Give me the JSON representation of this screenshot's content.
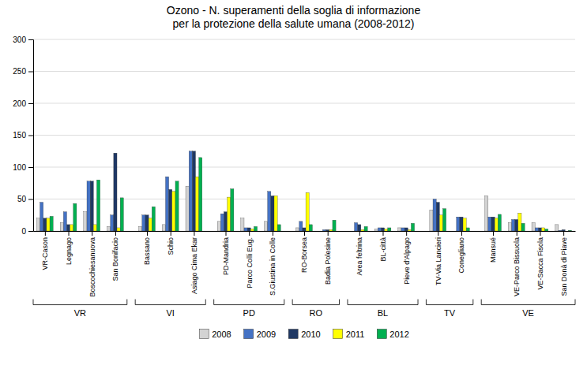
{
  "chart_data": {
    "type": "bar",
    "title": "Ozono - N. superamenti della soglia di informazione\nper la protezione della salute umana (2008-2012)",
    "categories": [
      "VR-Cason",
      "Legnago",
      "Boscochiesanuova",
      "San Bonifacio",
      "Bassano",
      "Schio",
      "Asiago Cima Ekar",
      "PD-Mandria",
      "Parco Colli Eug.",
      "S.Giustina in Colle",
      "RO-Borsea",
      "Badia Polesine",
      "Area feltrina",
      "BL-città",
      "Pieve d'Alpago",
      "TV-Via Lancieri",
      "Conegliano",
      "Mansué",
      "VE-Parco Bissuola",
      "VE-Sacca Fisola",
      "San Donà di Piave"
    ],
    "groups": [
      {
        "label": "VR",
        "categories": [
          "VR-Cason",
          "Legnago",
          "Boscochiesanuova",
          "San Bonifacio"
        ]
      },
      {
        "label": "VI",
        "categories": [
          "Bassano",
          "Schio",
          "Asiago Cima Ekar"
        ]
      },
      {
        "label": "PD",
        "categories": [
          "PD-Mandria",
          "Parco Colli Eug.",
          "S.Giustina in Colle"
        ]
      },
      {
        "label": "RO",
        "categories": [
          "RO-Borsea",
          "Badia Polesine"
        ]
      },
      {
        "label": "BL",
        "categories": [
          "Area feltrina",
          "BL-città",
          "Pieve d'Alpago"
        ]
      },
      {
        "label": "TV",
        "categories": [
          "TV-Via Lancieri",
          "Conegliano"
        ]
      },
      {
        "label": "VE",
        "categories": [
          "Mansué",
          "VE-Parco Bissuola",
          "VE-Sacca Fisola",
          "San Donà di Piave"
        ]
      }
    ],
    "series": [
      {
        "name": "2008",
        "color": "#d3d3d3",
        "values": [
          20,
          13,
          30,
          7,
          7,
          10,
          70,
          15,
          20,
          15,
          5,
          0,
          0,
          3,
          5,
          33,
          0,
          55,
          13,
          13,
          10
        ]
      },
      {
        "name": "2009",
        "color": "#4472c4",
        "values": [
          45,
          30,
          78,
          25,
          25,
          85,
          125,
          27,
          5,
          62,
          15,
          2,
          13,
          5,
          5,
          50,
          22,
          22,
          18,
          5,
          1
        ]
      },
      {
        "name": "2010",
        "color": "#1f3864",
        "values": [
          20,
          10,
          78,
          122,
          25,
          65,
          125,
          30,
          5,
          55,
          5,
          2,
          10,
          5,
          5,
          45,
          22,
          22,
          18,
          5,
          2
        ]
      },
      {
        "name": "2011",
        "color": "#ffff00",
        "values": [
          20,
          10,
          10,
          5,
          20,
          62,
          85,
          53,
          3,
          55,
          60,
          2,
          2,
          3,
          2,
          25,
          20,
          20,
          28,
          5,
          0
        ]
      },
      {
        "name": "2012",
        "color": "#00b050",
        "values": [
          23,
          43,
          80,
          52,
          38,
          78,
          115,
          66,
          7,
          10,
          10,
          17,
          7,
          5,
          12,
          35,
          5,
          26,
          12,
          3,
          1
        ]
      }
    ],
    "ylim": [
      0,
      300
    ],
    "yticks": [
      0,
      50,
      100,
      150,
      200,
      250,
      300
    ],
    "grid": true,
    "legend": "bottom"
  }
}
